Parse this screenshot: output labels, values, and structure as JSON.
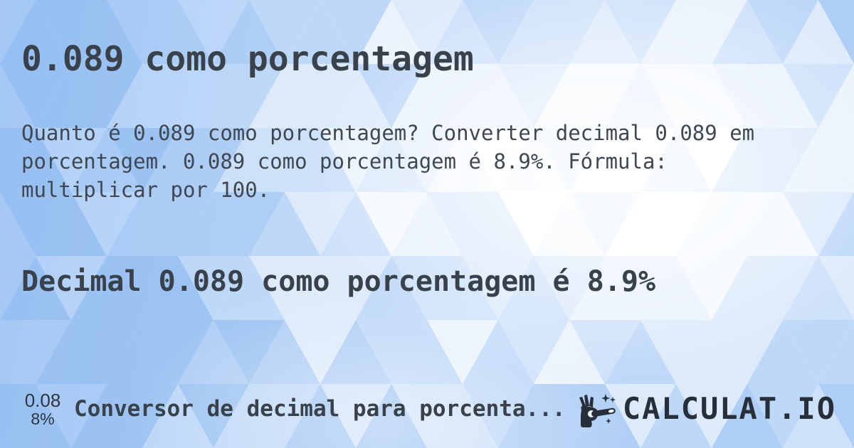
{
  "page": {
    "title": "0.089 como porcentagem",
    "description_lines": [
      "Quanto é 0.089 como porcentagem? Converter decimal 0.089 em",
      "porcentagem. 0.089 como porcentagem é 8.9%. Fórmula:",
      "multiplicar por 100."
    ],
    "subheading": "Decimal 0.089 como porcentagem é 8.9%"
  },
  "footer": {
    "category_icon": {
      "line1": "0.08",
      "line2": "8%"
    },
    "category_label": "Conversor de decimal para porcenta...",
    "brand": {
      "name": "CALCULAT.IO",
      "icon": "magic-wand-hand-icon"
    }
  },
  "theme": {
    "text_color": "#39414b",
    "body_text_color": "#3f4751",
    "brand_color": "#272f3a",
    "background_palette": [
      "#ffffff",
      "#f5f9fe",
      "#eaf2fd",
      "#dceafb",
      "#cde1fa",
      "#bed8f8",
      "#afcef5",
      "#9ec4f2"
    ]
  }
}
